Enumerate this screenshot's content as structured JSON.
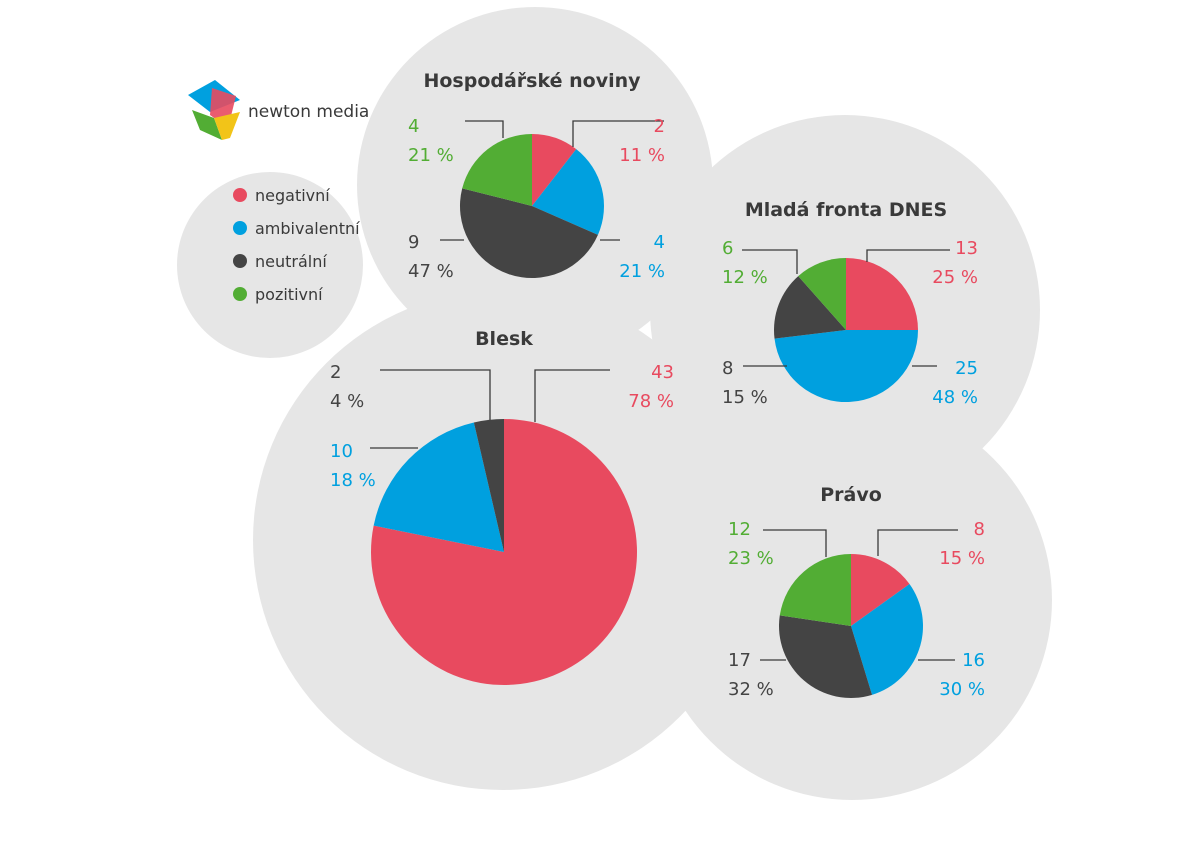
{
  "brand": {
    "name": "newton media"
  },
  "legend": [
    {
      "label": "negativní",
      "color": "#e84a5f"
    },
    {
      "label": "ambivalentní",
      "color": "#00a0df"
    },
    {
      "label": "neutrální",
      "color": "#444444"
    },
    {
      "label": "pozitivní",
      "color": "#52ad34"
    }
  ],
  "chart_data": [
    {
      "type": "pie",
      "title": "Hospodářské noviny",
      "slices": [
        {
          "category": "negativní",
          "value": 2,
          "percent": "11 %",
          "color": "#e84a5f"
        },
        {
          "category": "ambivalentní",
          "value": 4,
          "percent": "21 %",
          "color": "#00a0df"
        },
        {
          "category": "neutrální",
          "value": 9,
          "percent": "47 %",
          "color": "#444444"
        },
        {
          "category": "pozitivní",
          "value": 4,
          "percent": "21 %",
          "color": "#52ad34"
        }
      ]
    },
    {
      "type": "pie",
      "title": "Mladá fronta DNES",
      "slices": [
        {
          "category": "negativní",
          "value": 13,
          "percent": "25 %",
          "color": "#e84a5f"
        },
        {
          "category": "ambivalentní",
          "value": 25,
          "percent": "48 %",
          "color": "#00a0df"
        },
        {
          "category": "neutrální",
          "value": 8,
          "percent": "15 %",
          "color": "#444444"
        },
        {
          "category": "pozitivní",
          "value": 6,
          "percent": "12 %",
          "color": "#52ad34"
        }
      ]
    },
    {
      "type": "pie",
      "title": "Blesk",
      "slices": [
        {
          "category": "negativní",
          "value": 43,
          "percent": "78 %",
          "color": "#e84a5f"
        },
        {
          "category": "ambivalentní",
          "value": 10,
          "percent": "18 %",
          "color": "#00a0df"
        },
        {
          "category": "neutrální",
          "value": 2,
          "percent": "4 %",
          "color": "#444444"
        },
        {
          "category": "pozitivní",
          "value": 0,
          "percent": "",
          "color": "#52ad34"
        }
      ]
    },
    {
      "type": "pie",
      "title": "Právo",
      "slices": [
        {
          "category": "negativní",
          "value": 8,
          "percent": "15 %",
          "color": "#e84a5f"
        },
        {
          "category": "ambivalentní",
          "value": 16,
          "percent": "30 %",
          "color": "#00a0df"
        },
        {
          "category": "neutrální",
          "value": 17,
          "percent": "32 %",
          "color": "#444444"
        },
        {
          "category": "pozitivní",
          "value": 12,
          "percent": "23 %",
          "color": "#52ad34"
        }
      ]
    }
  ]
}
